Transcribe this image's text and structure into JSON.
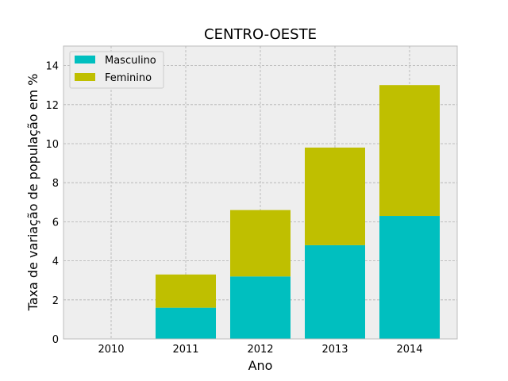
{
  "chart_data": {
    "type": "bar",
    "stacked": true,
    "title": "CENTRO-OESTE",
    "xlabel": "Ano",
    "ylabel": "Taxa de variação de população em %",
    "categories": [
      "2010",
      "2011",
      "2012",
      "2013",
      "2014"
    ],
    "series": [
      {
        "name": "Masculino",
        "values": [
          0,
          1.6,
          3.2,
          4.8,
          6.3
        ],
        "color": "#00bfbf"
      },
      {
        "name": "Feminino",
        "values": [
          0,
          1.7,
          3.4,
          5.0,
          6.7
        ],
        "color": "#bfbf00"
      }
    ],
    "ylim": [
      0,
      15
    ],
    "yticks": [
      0,
      2,
      4,
      6,
      8,
      10,
      12,
      14
    ],
    "grid": true,
    "legend_position": "top-left",
    "colors": {
      "background": "#eeeeee",
      "grid": "#b0b0b0",
      "frame": "#bcbcbc"
    }
  }
}
